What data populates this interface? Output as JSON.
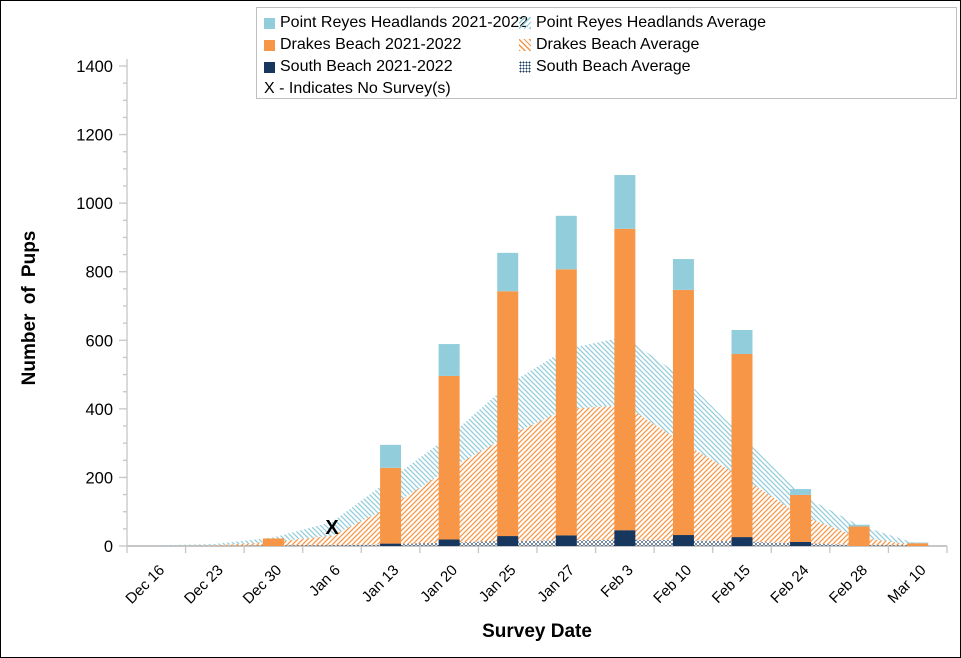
{
  "chart_data": {
    "type": "bar",
    "subtype": "stacked bars (2021-2022 season) overlaid on stacked pattern-filled average areas",
    "title": "",
    "xlabel": "Survey Date",
    "ylabel": "Number of Pups",
    "ylim": [
      0,
      1400
    ],
    "y_major_step": 200,
    "y_minor_step": 50,
    "grid": "off",
    "legend_position": "top",
    "categories": [
      "Dec 16",
      "Dec 23",
      "Dec 30",
      "Jan 6",
      "Jan 13",
      "Jan 20",
      "Jan 25",
      "Jan 27",
      "Feb 3",
      "Feb 10",
      "Feb 15",
      "Feb 24",
      "Feb 28",
      "Mar 10"
    ],
    "bar_series": [
      {
        "name": "South Beach 2021-2022",
        "color": "#17375E",
        "values": [
          0,
          0,
          0,
          null,
          7,
          19,
          29,
          31,
          46,
          32,
          26,
          12,
          0,
          0
        ]
      },
      {
        "name": "Drakes Beach 2021-2022",
        "color": "#F79646",
        "values": [
          0,
          0,
          22,
          null,
          221,
          477,
          714,
          776,
          879,
          715,
          534,
          137,
          57,
          8
        ]
      },
      {
        "name": "Point Reyes Headlands 2021-2022",
        "color": "#92CDDC",
        "values": [
          0,
          0,
          0,
          null,
          67,
          93,
          112,
          156,
          157,
          90,
          70,
          17,
          5,
          2
        ]
      }
    ],
    "area_series": [
      {
        "name": "South Beach Average",
        "pattern": "dots",
        "color": "#17375E",
        "values": [
          0,
          0,
          1,
          2,
          5,
          10,
          15,
          17,
          18,
          17,
          13,
          8,
          3,
          1
        ]
      },
      {
        "name": "Drakes Beach Average",
        "pattern": "diag-up",
        "color": "#F79646",
        "values": [
          0,
          2,
          11,
          28,
          110,
          215,
          305,
          383,
          392,
          283,
          187,
          82,
          22,
          1
        ]
      },
      {
        "name": "Point Reyes Headlands Average",
        "pattern": "diag-down",
        "color": "#92CDDC",
        "values": [
          2,
          4,
          13,
          40,
          80,
          95,
          150,
          175,
          200,
          190,
          120,
          60,
          35,
          4
        ]
      }
    ],
    "no_survey_marker": {
      "symbol": "X",
      "category": "Jan 6",
      "value": 55
    },
    "axis_color": "#C6C6C6",
    "legend": {
      "left_items": [
        {
          "label": "Point Reyes Headlands 2021-2022",
          "swatch": "solid",
          "color": "#92CDDC"
        },
        {
          "label": "Drakes Beach 2021-2022",
          "swatch": "solid",
          "color": "#F79646"
        },
        {
          "label": "South Beach 2021-2022",
          "swatch": "solid",
          "color": "#17375E"
        },
        {
          "label": "X - Indicates No Survey(s)",
          "swatch": "none",
          "color": ""
        }
      ],
      "right_items": [
        {
          "label": "Point Reyes Headlands Average",
          "swatch": "diag-down",
          "color": "#92CDDC"
        },
        {
          "label": "Drakes Beach Average",
          "swatch": "diag-up",
          "color": "#F79646"
        },
        {
          "label": "South Beach Average",
          "swatch": "dots",
          "color": "#17375E"
        }
      ]
    }
  }
}
